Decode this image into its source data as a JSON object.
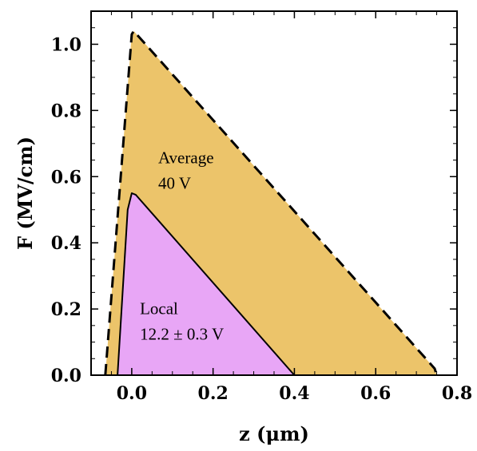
{
  "chart_data": {
    "type": "area",
    "xlabel": "z (μm)",
    "ylabel": "F (MV/cm)",
    "xlim": [
      -0.1,
      0.8
    ],
    "ylim": [
      0,
      1.1
    ],
    "x_ticks": [
      {
        "value": 0.0,
        "label": "0.0"
      },
      {
        "value": 0.2,
        "label": "0.2"
      },
      {
        "value": 0.4,
        "label": "0.4"
      },
      {
        "value": 0.6,
        "label": "0.6"
      },
      {
        "value": 0.8,
        "label": "0.8"
      }
    ],
    "y_ticks": [
      {
        "value": 0.0,
        "label": "0.0"
      },
      {
        "value": 0.2,
        "label": "0.2"
      },
      {
        "value": 0.4,
        "label": "0.4"
      },
      {
        "value": 0.6,
        "label": "0.6"
      },
      {
        "value": 0.8,
        "label": "0.8"
      },
      {
        "value": 1.0,
        "label": "1.0"
      }
    ],
    "grid": false,
    "series": [
      {
        "key": "average",
        "color": "#ECC46A",
        "line_style": "dashed",
        "x": [
          -0.065,
          0.0,
          0.005,
          0.745,
          0.75
        ],
        "y": [
          0.0,
          1.03,
          1.04,
          0.02,
          0.0
        ]
      },
      {
        "key": "local",
        "color": "#E8A6F6",
        "line_style": "solid",
        "x": [
          -0.035,
          -0.01,
          0.0,
          0.01,
          0.4
        ],
        "y": [
          0.0,
          0.5,
          0.55,
          0.545,
          0.0
        ]
      }
    ],
    "annotations": [
      {
        "key": "average",
        "lines": [
          "Average",
          "40 V"
        ],
        "x": 0.065,
        "y": 0.64
      },
      {
        "key": "local",
        "lines": [
          "Local",
          "12.2 ± 0.3 V"
        ],
        "x": 0.02,
        "y": 0.185
      }
    ]
  }
}
